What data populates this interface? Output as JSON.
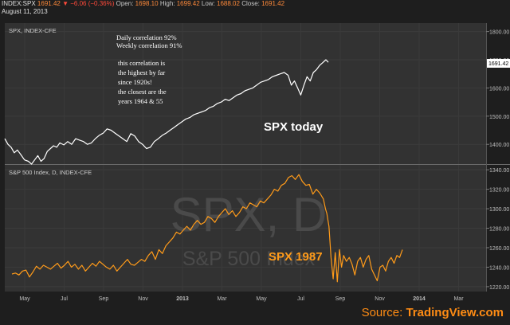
{
  "header": {
    "symbol": "INDEX:SPX",
    "last": "1691.42",
    "change": "−6.06 (−0.36%)",
    "open_label": "Open:",
    "open": "1698.10",
    "high_label": "High:",
    "high": "1699.42",
    "low_label": "Low:",
    "low": "1688.02",
    "close_label": "Close:",
    "close": "1691.42",
    "date": "August 11, 2013"
  },
  "source": {
    "prefix": "Source: ",
    "brand": "TradingView.com"
  },
  "colors": {
    "background": "#1e1e1e",
    "plot_background": "#323232",
    "top_series": "#ffffff",
    "bottom_series": "#ff9b1a",
    "accent": "#ff8c14"
  },
  "chart_data": [
    {
      "type": "line",
      "panel_label": "SPX, INDEX-CFE",
      "series": [
        {
          "name": "SPX",
          "x": [
            0,
            4,
            8,
            12,
            16,
            20,
            25,
            30,
            34,
            38,
            42,
            46,
            50,
            54,
            58,
            62,
            66,
            70,
            75,
            80,
            85,
            90,
            95,
            100,
            105,
            110,
            115,
            120,
            125,
            130,
            135,
            140,
            145,
            150,
            155,
            160,
            165,
            170,
            175,
            180,
            185,
            190,
            195,
            200,
            205,
            210,
            215,
            220,
            225,
            230,
            235,
            240,
            245,
            250,
            255,
            260,
            265,
            270,
            275,
            280,
            285,
            290,
            295,
            300,
            305,
            310,
            315,
            320,
            325,
            330,
            335,
            340,
            345,
            350,
            355,
            360,
            364,
            368,
            372,
            376,
            380,
            384,
            388,
            392,
            396,
            400,
            404,
            408,
            411
          ],
          "y": [
            1420,
            1400,
            1390,
            1370,
            1380,
            1365,
            1345,
            1340,
            1330,
            1345,
            1360,
            1340,
            1350,
            1375,
            1385,
            1395,
            1390,
            1405,
            1398,
            1410,
            1400,
            1420,
            1415,
            1410,
            1400,
            1405,
            1420,
            1432,
            1440,
            1455,
            1450,
            1440,
            1430,
            1420,
            1410,
            1438,
            1430,
            1410,
            1400,
            1385,
            1390,
            1410,
            1420,
            1432,
            1440,
            1450,
            1460,
            1470,
            1480,
            1490,
            1495,
            1505,
            1510,
            1515,
            1520,
            1530,
            1535,
            1545,
            1550,
            1560,
            1555,
            1565,
            1575,
            1580,
            1590,
            1595,
            1600,
            1610,
            1620,
            1625,
            1630,
            1640,
            1645,
            1650,
            1655,
            1645,
            1610,
            1625,
            1600,
            1575,
            1610,
            1640,
            1625,
            1655,
            1665,
            1680,
            1690,
            1700,
            1691
          ]
        }
      ],
      "ylim": [
        1330,
        1830
      ],
      "y_ticks": [
        "1800.00",
        "1700.00",
        "1600.00",
        "1500.00",
        "1400.00"
      ],
      "last_value_label": "1691.42",
      "annotations": {
        "daily": "Daily correlation 92%",
        "weekly": "Weekly correlation 91%",
        "note_lines": [
          "this correlation is",
          "the highest by far",
          "since 1920s!",
          "the closest are the",
          "years 1964 & 55"
        ],
        "big_label": "SPX today"
      }
    },
    {
      "type": "line",
      "panel_label": "S&P 500 Index, D, INDEX-CFE",
      "watermark_main": "SPX, D",
      "watermark_sub": "S&P 500 Index",
      "big_label": "SPX 1987",
      "x_ticks": [
        "May",
        "Jul",
        "Sep",
        "Nov",
        "2013",
        "Mar",
        "May",
        "Jul",
        "Sep",
        "Nov",
        "2014",
        "Mar"
      ],
      "series": [
        {
          "name": "SPX 1987",
          "x": [
            0,
            5,
            10,
            15,
            20,
            25,
            30,
            35,
            40,
            45,
            50,
            55,
            60,
            65,
            70,
            75,
            80,
            85,
            90,
            95,
            100,
            105,
            110,
            115,
            120,
            125,
            130,
            135,
            140,
            145,
            150,
            155,
            160,
            165,
            170,
            175,
            180,
            185,
            190,
            195,
            200,
            205,
            210,
            215,
            220,
            225,
            230,
            235,
            240,
            245,
            250,
            255,
            260,
            265,
            270,
            275,
            280,
            285,
            290,
            295,
            300,
            305,
            310,
            315,
            320,
            325,
            330,
            335,
            340,
            345,
            350,
            355,
            360,
            365,
            370,
            375,
            380,
            385,
            390,
            395,
            400,
            405,
            410,
            415,
            420,
            425,
            430,
            435,
            440,
            445,
            448,
            450,
            453,
            456,
            459,
            462,
            465,
            468,
            471,
            474,
            478,
            482,
            486,
            490,
            494,
            498,
            502,
            506,
            510,
            514,
            518,
            522,
            526,
            530,
            534,
            538,
            542,
            546,
            550,
            554,
            558
          ],
          "y": [
            1233,
            1234,
            1232,
            1236,
            1237,
            1230,
            1235,
            1241,
            1238,
            1242,
            1240,
            1238,
            1241,
            1244,
            1239,
            1242,
            1246,
            1240,
            1243,
            1238,
            1242,
            1236,
            1240,
            1244,
            1241,
            1246,
            1243,
            1240,
            1238,
            1242,
            1236,
            1240,
            1244,
            1248,
            1243,
            1242,
            1245,
            1248,
            1246,
            1252,
            1256,
            1248,
            1258,
            1254,
            1262,
            1266,
            1270,
            1276,
            1274,
            1278,
            1282,
            1278,
            1284,
            1288,
            1284,
            1286,
            1292,
            1290,
            1286,
            1292,
            1296,
            1300,
            1294,
            1298,
            1292,
            1296,
            1302,
            1300,
            1306,
            1304,
            1302,
            1308,
            1306,
            1310,
            1314,
            1320,
            1318,
            1324,
            1326,
            1332,
            1334,
            1330,
            1335,
            1328,
            1324,
            1325,
            1315,
            1320,
            1316,
            1310,
            1300,
            1295,
            1282,
            1250,
            1228,
            1255,
            1225,
            1258,
            1240,
            1252,
            1246,
            1250,
            1243,
            1232,
            1246,
            1250,
            1240,
            1248,
            1252,
            1238,
            1232,
            1226,
            1240,
            1242,
            1236,
            1246,
            1250,
            1244,
            1252,
            1250,
            1258
          ]
        }
      ],
      "ylim": [
        1215,
        1345
      ],
      "y_ticks": [
        "1340.00",
        "1320.00",
        "1300.00",
        "1280.00",
        "1260.00",
        "1240.00",
        "1220.00"
      ]
    }
  ]
}
